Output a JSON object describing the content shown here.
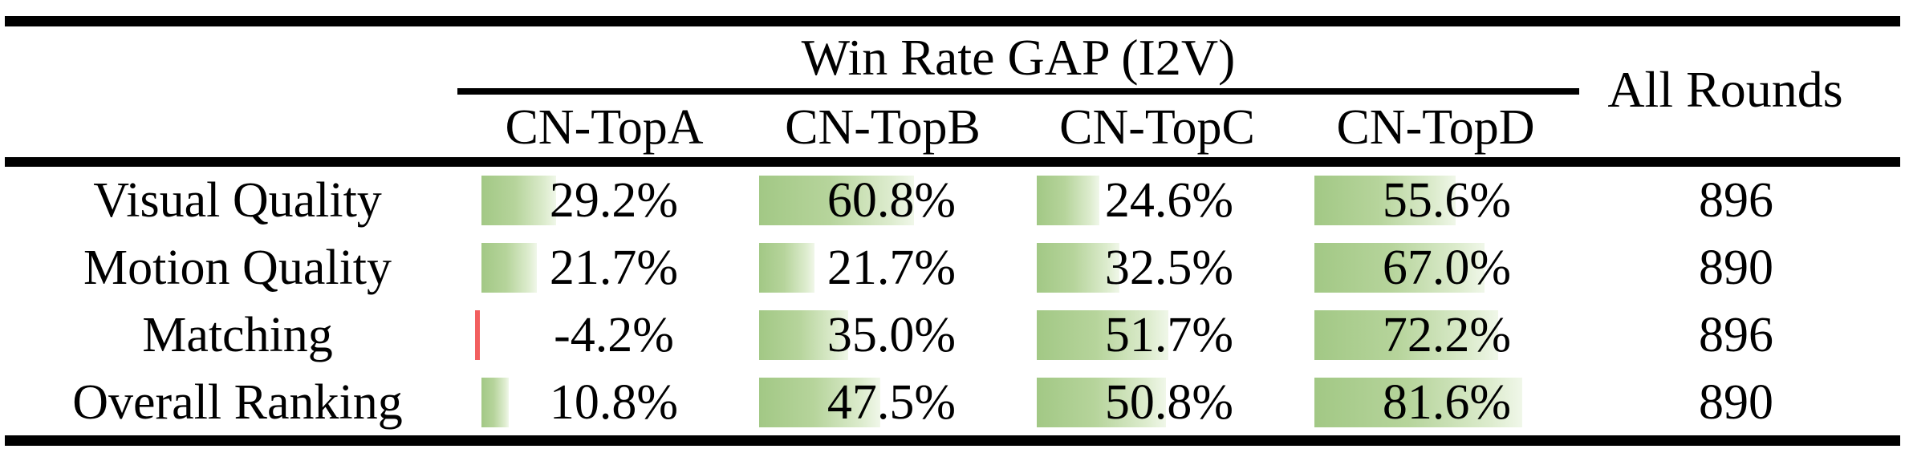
{
  "table": {
    "group_title": "Win Rate GAP (I2V)",
    "all_rounds_header": "All Rounds",
    "columns": [
      "CN-TopA",
      "CN-TopB",
      "CN-TopC",
      "CN-TopD"
    ],
    "rows": [
      {
        "label": "Visual Quality",
        "cells": [
          {
            "text": "29.2%",
            "value": 29.2
          },
          {
            "text": "60.8%",
            "value": 60.8
          },
          {
            "text": "24.6%",
            "value": 24.6
          },
          {
            "text": "55.6%",
            "value": 55.6
          }
        ],
        "all_rounds": "896"
      },
      {
        "label": "Motion Quality",
        "cells": [
          {
            "text": "21.7%",
            "value": 21.7
          },
          {
            "text": "21.7%",
            "value": 21.7
          },
          {
            "text": "32.5%",
            "value": 32.5
          },
          {
            "text": "67.0%",
            "value": 67.0
          }
        ],
        "all_rounds": "890"
      },
      {
        "label": "Matching",
        "cells": [
          {
            "text": "-4.2%",
            "value": -4.2
          },
          {
            "text": "35.0%",
            "value": 35.0
          },
          {
            "text": "51.7%",
            "value": 51.7
          },
          {
            "text": "72.2%",
            "value": 72.2
          }
        ],
        "all_rounds": "896"
      },
      {
        "label": "Overall Ranking",
        "cells": [
          {
            "text": "10.8%",
            "value": 10.8
          },
          {
            "text": "47.5%",
            "value": 47.5
          },
          {
            "text": "50.8%",
            "value": 50.8
          },
          {
            "text": "81.6%",
            "value": 81.6
          }
        ],
        "all_rounds": "890"
      }
    ]
  },
  "colors": {
    "bar_positive_start": "#a2c885",
    "bar_positive_end": "#f0f7e9",
    "bar_negative": "#f25f5f",
    "rule": "#000000",
    "text": "#000000",
    "background": "#ffffff"
  },
  "chart_data": {
    "type": "table",
    "title": "Win Rate GAP (I2V)",
    "categories": [
      "Visual Quality",
      "Motion Quality",
      "Matching",
      "Overall Ranking"
    ],
    "series": [
      {
        "name": "CN-TopA",
        "values": [
          29.2,
          21.7,
          -4.2,
          10.8
        ]
      },
      {
        "name": "CN-TopB",
        "values": [
          60.8,
          21.7,
          35.0,
          47.5
        ]
      },
      {
        "name": "CN-TopC",
        "values": [
          24.6,
          32.5,
          51.7,
          50.8
        ]
      },
      {
        "name": "CN-TopD",
        "values": [
          55.6,
          67.0,
          72.2,
          81.6
        ]
      }
    ],
    "all_rounds": [
      896,
      890,
      896,
      890
    ],
    "unit": "%",
    "notes": "In-cell data bars: green gradient for positive values (width proportional to value), thin red bar for negative values"
  }
}
